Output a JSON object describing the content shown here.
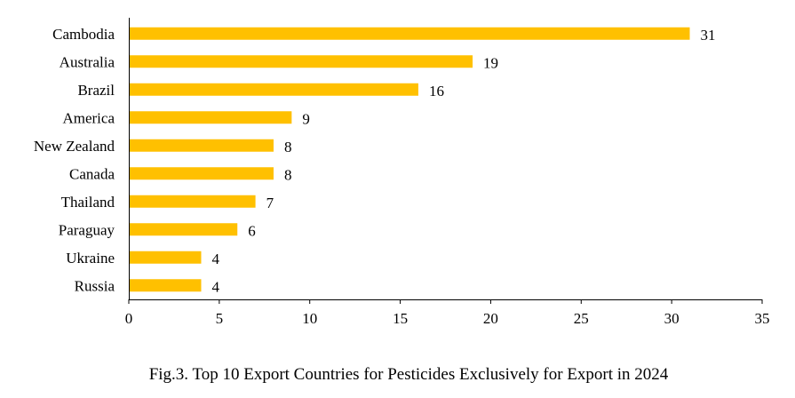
{
  "chart_data": {
    "type": "bar",
    "orientation": "horizontal",
    "categories": [
      "Cambodia",
      "Australia",
      "Brazil",
      "America",
      "New Zealand",
      "Canada",
      "Thailand",
      "Paraguay",
      "Ukraine",
      "Russia"
    ],
    "values": [
      31,
      19,
      16,
      9,
      8,
      8,
      7,
      6,
      4,
      4
    ],
    "xlim": [
      0,
      35
    ],
    "xticks": [
      0,
      5,
      10,
      15,
      20,
      25,
      30,
      35
    ],
    "grid": false,
    "data_labels": true,
    "bar_color": "#FFC000",
    "title": "",
    "xlabel": "",
    "ylabel": ""
  },
  "caption": "Fig.3. Top 10 Export Countries for Pesticides Exclusively for Export in 2024"
}
